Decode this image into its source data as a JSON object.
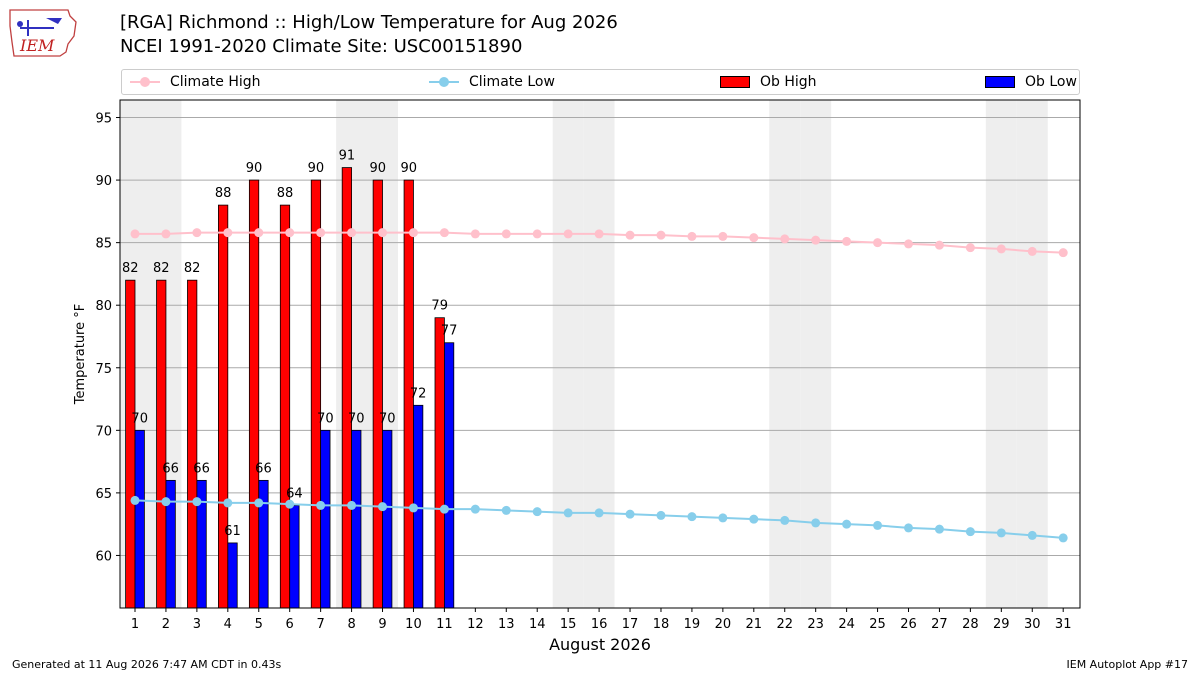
{
  "header": {
    "title_line1": "[RGA] Richmond :: High/Low Temperature for Aug 2026",
    "title_line2": "NCEI 1991-2020 Climate Site: USC00151890",
    "logo_text": "IEM"
  },
  "legend": {
    "climate_high": "Climate High",
    "climate_low": "Climate Low",
    "ob_high": "Ob High",
    "ob_low": "Ob Low"
  },
  "footer": {
    "generated": "Generated at 11 Aug 2026 7:47 AM CDT in 0.43s",
    "app": "IEM Autoplot App #17"
  },
  "colors": {
    "ob_high": "#ff0000",
    "ob_low": "#0000ff",
    "climate_high": "#ffc0cb",
    "climate_low": "#87ceeb",
    "weekend_shade": "#eeeeee",
    "grid": "#aaaaaa"
  },
  "chart_data": {
    "type": "bar",
    "xlabel": "August 2026",
    "ylabel": "Temperature °F",
    "ylim": [
      55.8,
      96.4
    ],
    "yticks": [
      60,
      65,
      70,
      75,
      80,
      85,
      90,
      95
    ],
    "days": [
      1,
      2,
      3,
      4,
      5,
      6,
      7,
      8,
      9,
      10,
      11,
      12,
      13,
      14,
      15,
      16,
      17,
      18,
      19,
      20,
      21,
      22,
      23,
      24,
      25,
      26,
      27,
      28,
      29,
      30,
      31
    ],
    "weekend_days": [
      1,
      2,
      8,
      9,
      15,
      16,
      22,
      23,
      29,
      30
    ],
    "grid": true,
    "legend_position": "top",
    "series": [
      {
        "name": "Ob High",
        "kind": "bar",
        "values": [
          82,
          82,
          82,
          88,
          90,
          88,
          90,
          91,
          90,
          90,
          79
        ]
      },
      {
        "name": "Ob Low",
        "kind": "bar",
        "values": [
          70,
          66,
          66,
          61,
          66,
          64,
          70,
          70,
          70,
          72,
          77
        ]
      },
      {
        "name": "Climate High",
        "kind": "line",
        "values": [
          85.7,
          85.7,
          85.8,
          85.8,
          85.8,
          85.8,
          85.8,
          85.8,
          85.8,
          85.8,
          85.8,
          85.7,
          85.7,
          85.7,
          85.7,
          85.7,
          85.6,
          85.6,
          85.5,
          85.5,
          85.4,
          85.3,
          85.2,
          85.1,
          85.0,
          84.9,
          84.8,
          84.6,
          84.5,
          84.3,
          84.2
        ]
      },
      {
        "name": "Climate Low",
        "kind": "line",
        "values": [
          64.4,
          64.3,
          64.3,
          64.2,
          64.2,
          64.1,
          64.0,
          64.0,
          63.9,
          63.8,
          63.7,
          63.7,
          63.6,
          63.5,
          63.4,
          63.4,
          63.3,
          63.2,
          63.1,
          63.0,
          62.9,
          62.8,
          62.6,
          62.5,
          62.4,
          62.2,
          62.1,
          61.9,
          61.8,
          61.6,
          61.4
        ]
      }
    ]
  }
}
